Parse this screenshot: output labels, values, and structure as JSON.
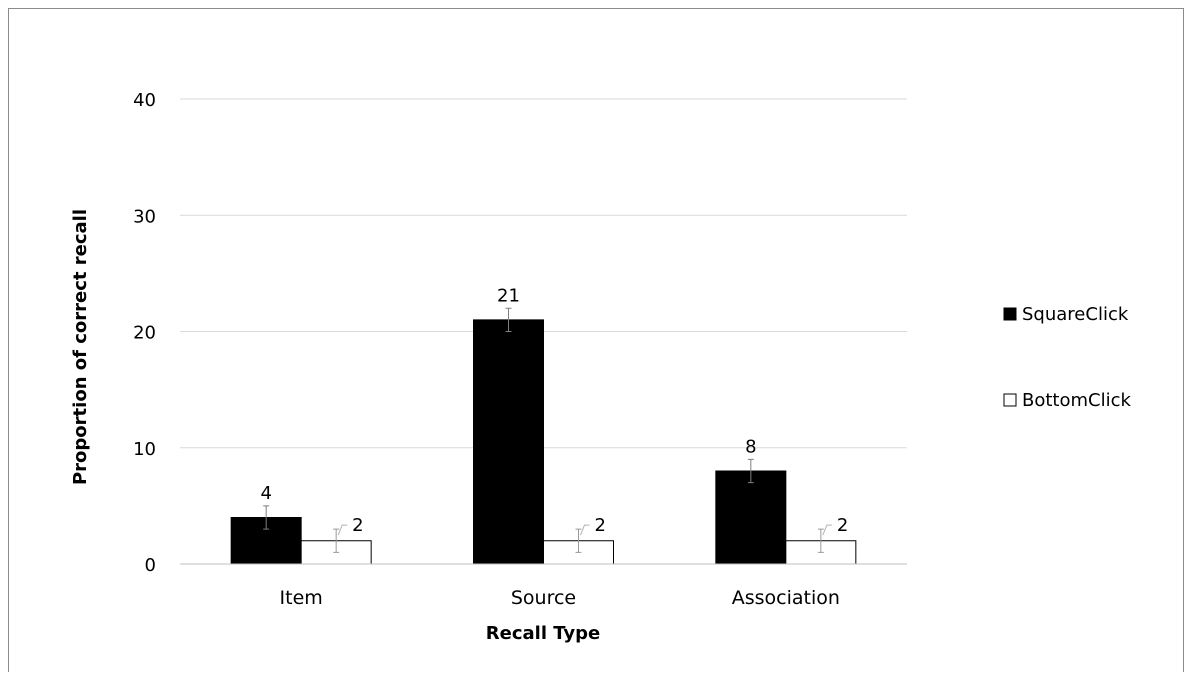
{
  "chart_data": {
    "type": "bar",
    "title": "",
    "xlabel": "Recall Type",
    "ylabel": "Proportion of correct recall",
    "categories": [
      "Item",
      "Source",
      "Association"
    ],
    "ylim": [
      0,
      40
    ],
    "yticks": [
      0,
      10,
      20,
      30,
      40
    ],
    "grid": true,
    "legend_position": "right",
    "series": [
      {
        "name": "SquareClick",
        "values": [
          4,
          21,
          8
        ],
        "error": [
          1,
          1,
          1
        ],
        "color": "#000000",
        "labels": [
          "4",
          "21",
          "8"
        ]
      },
      {
        "name": "BottomClick",
        "values": [
          2,
          2,
          2
        ],
        "error": [
          1,
          1,
          1
        ],
        "color": "#ffffff",
        "labels": [
          "2",
          "2",
          "2"
        ]
      }
    ]
  }
}
